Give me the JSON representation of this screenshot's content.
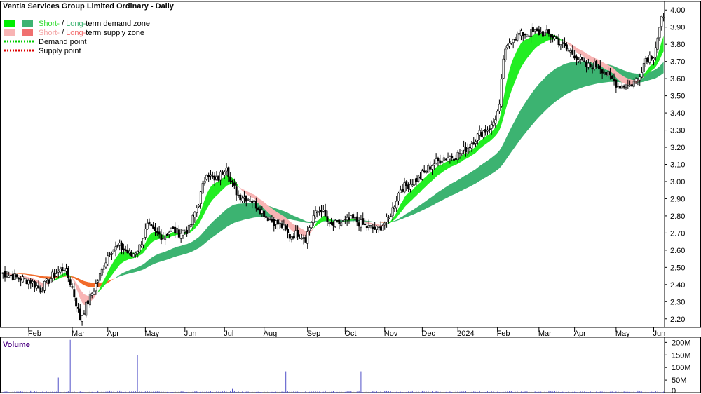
{
  "chart_data": {
    "type": "candlestick",
    "title": "Ventia Services Group Limited Ordinary - Daily",
    "legend": [
      {
        "parts": [
          {
            "text": "Short-",
            "color": "#33dd33"
          },
          {
            "text": " / ",
            "color": "#000000"
          },
          {
            "text": "Long-",
            "color": "#3cb371"
          },
          {
            "text": "term demand zone",
            "color": "#000000"
          }
        ],
        "swatches": [
          "#00ee00",
          "#3cb371"
        ],
        "style": "box"
      },
      {
        "parts": [
          {
            "text": "Short-",
            "color": "#f4a6a6"
          },
          {
            "text": " / ",
            "color": "#000000"
          },
          {
            "text": "Long-",
            "color": "#f26b6b"
          },
          {
            "text": "term supply zone",
            "color": "#000000"
          }
        ],
        "swatches": [
          "#f8b4b4",
          "#f07070"
        ],
        "style": "box"
      },
      {
        "parts": [
          {
            "text": "Demand point",
            "color": "#000000"
          }
        ],
        "swatches": [
          "#00cc00"
        ],
        "style": "dotted"
      },
      {
        "parts": [
          {
            "text": "Supply point",
            "color": "#000000"
          }
        ],
        "swatches": [
          "#dd0000"
        ],
        "style": "dotted"
      }
    ],
    "x_months": [
      "Feb",
      "Mar",
      "Apr",
      "May",
      "Jun",
      "Jul",
      "Aug",
      "Sep",
      "Oct",
      "Nov",
      "Dec",
      "2024",
      "Feb",
      "Mar",
      "Apr",
      "May",
      "Jun"
    ],
    "y_ticks": [
      "2.20",
      "2.30",
      "2.40",
      "2.50",
      "2.60",
      "2.70",
      "2.80",
      "2.90",
      "3.00",
      "3.10",
      "3.20",
      "3.30",
      "3.40",
      "3.50",
      "3.60",
      "3.70",
      "3.80",
      "3.90",
      "4.00"
    ],
    "ylim": [
      2.15,
      4.05
    ],
    "price_path": [
      [
        0,
        2.47
      ],
      [
        8,
        2.44
      ],
      [
        15,
        2.42
      ],
      [
        20,
        2.37
      ],
      [
        26,
        2.45
      ],
      [
        32,
        2.5
      ],
      [
        36,
        2.38
      ],
      [
        40,
        2.2
      ],
      [
        44,
        2.3
      ],
      [
        50,
        2.45
      ],
      [
        55,
        2.6
      ],
      [
        60,
        2.62
      ],
      [
        66,
        2.57
      ],
      [
        70,
        2.62
      ],
      [
        74,
        2.74
      ],
      [
        78,
        2.7
      ],
      [
        82,
        2.68
      ],
      [
        86,
        2.72
      ],
      [
        90,
        2.7
      ],
      [
        95,
        2.72
      ],
      [
        100,
        2.88
      ],
      [
        104,
        3.06
      ],
      [
        108,
        3.0
      ],
      [
        110,
        3.02
      ],
      [
        114,
        3.1
      ],
      [
        116,
        3.0
      ],
      [
        120,
        2.92
      ],
      [
        126,
        2.9
      ],
      [
        130,
        2.85
      ],
      [
        136,
        2.78
      ],
      [
        142,
        2.74
      ],
      [
        146,
        2.68
      ],
      [
        150,
        2.7
      ],
      [
        154,
        2.67
      ],
      [
        158,
        2.8
      ],
      [
        162,
        2.84
      ],
      [
        166,
        2.74
      ],
      [
        172,
        2.76
      ],
      [
        178,
        2.78
      ],
      [
        184,
        2.74
      ],
      [
        190,
        2.72
      ],
      [
        196,
        2.78
      ],
      [
        202,
        2.96
      ],
      [
        206,
        2.98
      ],
      [
        212,
        3.03
      ],
      [
        218,
        3.1
      ],
      [
        224,
        3.14
      ],
      [
        230,
        3.15
      ],
      [
        236,
        3.2
      ],
      [
        242,
        3.28
      ],
      [
        248,
        3.32
      ],
      [
        252,
        3.43
      ],
      [
        254,
        3.72
      ],
      [
        258,
        3.84
      ],
      [
        264,
        3.86
      ],
      [
        270,
        3.87
      ],
      [
        276,
        3.86
      ],
      [
        280,
        3.84
      ],
      [
        286,
        3.77
      ],
      [
        290,
        3.74
      ],
      [
        296,
        3.67
      ],
      [
        302,
        3.68
      ],
      [
        306,
        3.63
      ],
      [
        312,
        3.56
      ],
      [
        318,
        3.56
      ],
      [
        322,
        3.6
      ],
      [
        326,
        3.72
      ],
      [
        330,
        3.74
      ],
      [
        334,
        3.94
      ]
    ],
    "volume": {
      "label": "Volume",
      "y_ticks": [
        "0",
        "50M",
        "100M",
        "150M",
        "200M"
      ],
      "ymax": 215,
      "spikes": [
        [
          30,
          60
        ],
        [
          36,
          210
        ],
        [
          72,
          150
        ],
        [
          122,
          15
        ],
        [
          150,
          85
        ],
        [
          190,
          85
        ]
      ]
    }
  }
}
